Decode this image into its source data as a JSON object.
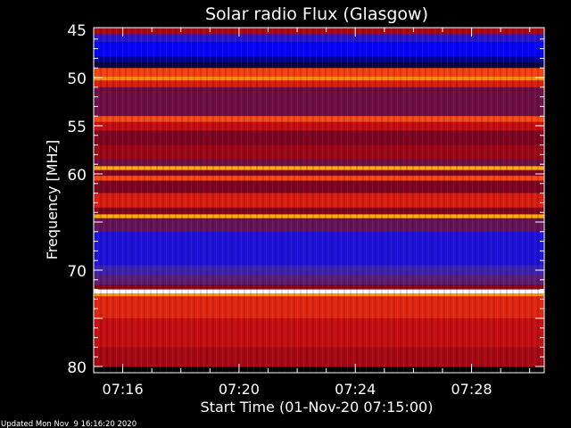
{
  "chart_data": {
    "type": "heatmap",
    "title": "Solar radio Flux (Glasgow)",
    "xlabel": "Start Time (01-Nov-20 07:15:00)",
    "ylabel": "Frequency [MHz]",
    "xlim_minutes_after_0715": [
      0,
      15.5
    ],
    "ylim": [
      45,
      80
    ],
    "y_inverted": true,
    "yticks_labeled": [
      "45",
      "50",
      "55",
      "60",
      "70",
      "80"
    ],
    "yticks_values": [
      45,
      50,
      55,
      60,
      70,
      80
    ],
    "xticks": [
      "07:16",
      "07:20",
      "07:24",
      "07:28"
    ],
    "xticks_minutes_after_0715": [
      1,
      5,
      9,
      13
    ],
    "colormap": [
      "#000010",
      "#0000ff",
      "#4a2aa0",
      "#800018",
      "#d01010",
      "#ff5010",
      "#ffb000",
      "#ffffff"
    ],
    "bands": [
      {
        "f0": 45.0,
        "f1": 45.5,
        "level": 0.5
      },
      {
        "f0": 45.5,
        "f1": 46.3,
        "level": 0.22
      },
      {
        "f0": 46.3,
        "f1": 47.8,
        "level": 0.15
      },
      {
        "f0": 47.8,
        "f1": 48.4,
        "level": 0.08
      },
      {
        "f0": 48.4,
        "f1": 49.0,
        "level": 0.03
      },
      {
        "f0": 49.0,
        "f1": 49.9,
        "level": 0.68
      },
      {
        "f0": 49.9,
        "f1": 50.3,
        "level": 0.8
      },
      {
        "f0": 50.3,
        "f1": 51.0,
        "level": 0.6
      },
      {
        "f0": 51.0,
        "f1": 54.0,
        "level": 0.38
      },
      {
        "f0": 54.0,
        "f1": 54.6,
        "level": 0.7
      },
      {
        "f0": 54.6,
        "f1": 55.5,
        "level": 0.55
      },
      {
        "f0": 55.5,
        "f1": 57.0,
        "level": 0.42
      },
      {
        "f0": 57.0,
        "f1": 58.5,
        "level": 0.48
      },
      {
        "f0": 58.5,
        "f1": 59.2,
        "level": 0.38
      },
      {
        "f0": 59.2,
        "f1": 59.6,
        "level": 0.85
      },
      {
        "f0": 59.6,
        "f1": 60.2,
        "level": 0.42
      },
      {
        "f0": 60.2,
        "f1": 60.7,
        "level": 0.7
      },
      {
        "f0": 60.7,
        "f1": 62.0,
        "level": 0.42
      },
      {
        "f0": 62.0,
        "f1": 63.5,
        "level": 0.6
      },
      {
        "f0": 63.5,
        "f1": 64.2,
        "level": 0.42
      },
      {
        "f0": 64.2,
        "f1": 64.6,
        "level": 0.85
      },
      {
        "f0": 64.6,
        "f1": 66.0,
        "level": 0.36
      },
      {
        "f0": 66.0,
        "f1": 69.5,
        "level": 0.2
      },
      {
        "f0": 69.5,
        "f1": 70.5,
        "level": 0.26
      },
      {
        "f0": 70.5,
        "f1": 71.5,
        "level": 0.33
      },
      {
        "f0": 71.5,
        "f1": 72.0,
        "level": 0.45
      },
      {
        "f0": 72.0,
        "f1": 72.4,
        "level": 1.0
      },
      {
        "f0": 72.4,
        "f1": 72.7,
        "level": 0.82
      },
      {
        "f0": 72.7,
        "f1": 75.0,
        "level": 0.62
      },
      {
        "f0": 75.0,
        "f1": 78.0,
        "level": 0.55
      },
      {
        "f0": 78.0,
        "f1": 80.0,
        "level": 0.5
      }
    ]
  },
  "footer": {
    "updated": "Updated Mon Nov  9 16:16:20 2020"
  }
}
